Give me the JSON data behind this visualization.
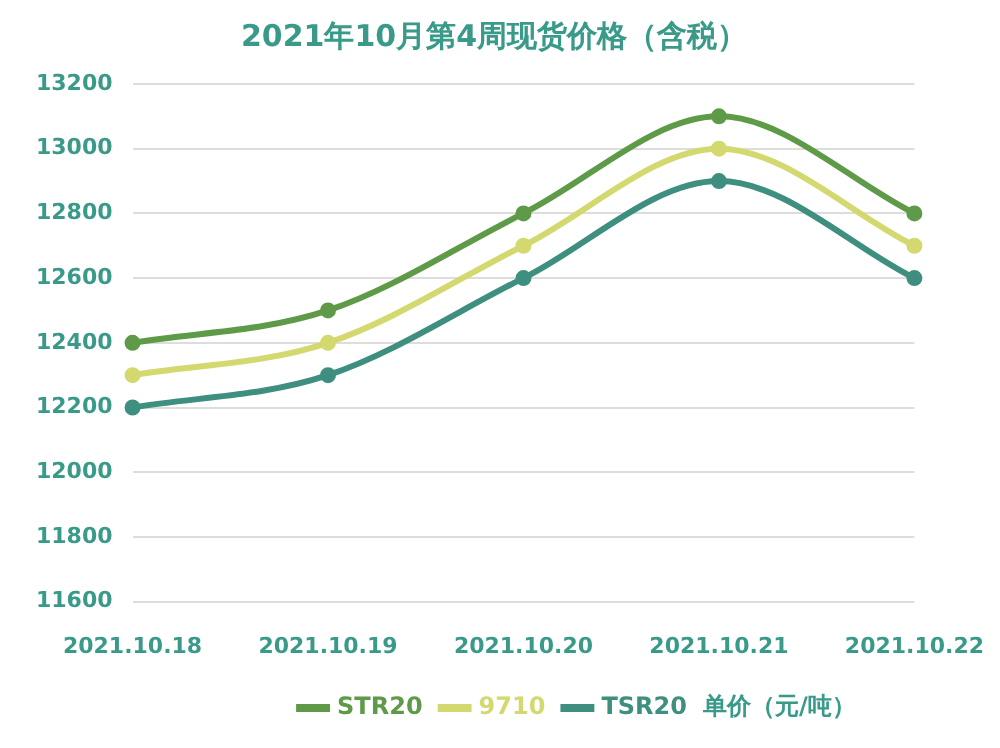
{
  "chart_data": {
    "type": "line",
    "title": "2021年10月第4周现货价格（含税）",
    "annotations": [
      "单价（元/吨）"
    ],
    "categories": [
      "2021.10.18",
      "2021.10.19",
      "2021.10.20",
      "2021.10.21",
      "2021.10.22"
    ],
    "series": [
      {
        "name": "STR20",
        "color": "#5f9a48",
        "values": [
          12400,
          12500,
          12800,
          13100,
          12800
        ]
      },
      {
        "name": "9710",
        "color": "#d3d96e",
        "values": [
          12300,
          12400,
          12700,
          13000,
          12700
        ]
      },
      {
        "name": "TSR20",
        "color": "#3e8f80",
        "values": [
          12200,
          12300,
          12600,
          12900,
          12600
        ]
      }
    ],
    "ylim": [
      11600,
      13200
    ],
    "yticks": [
      11600,
      11800,
      12000,
      12200,
      12400,
      12600,
      12800,
      13000,
      13200
    ],
    "grid": "y",
    "legend": "bottom",
    "marker": "circle",
    "line_style": "solid"
  }
}
